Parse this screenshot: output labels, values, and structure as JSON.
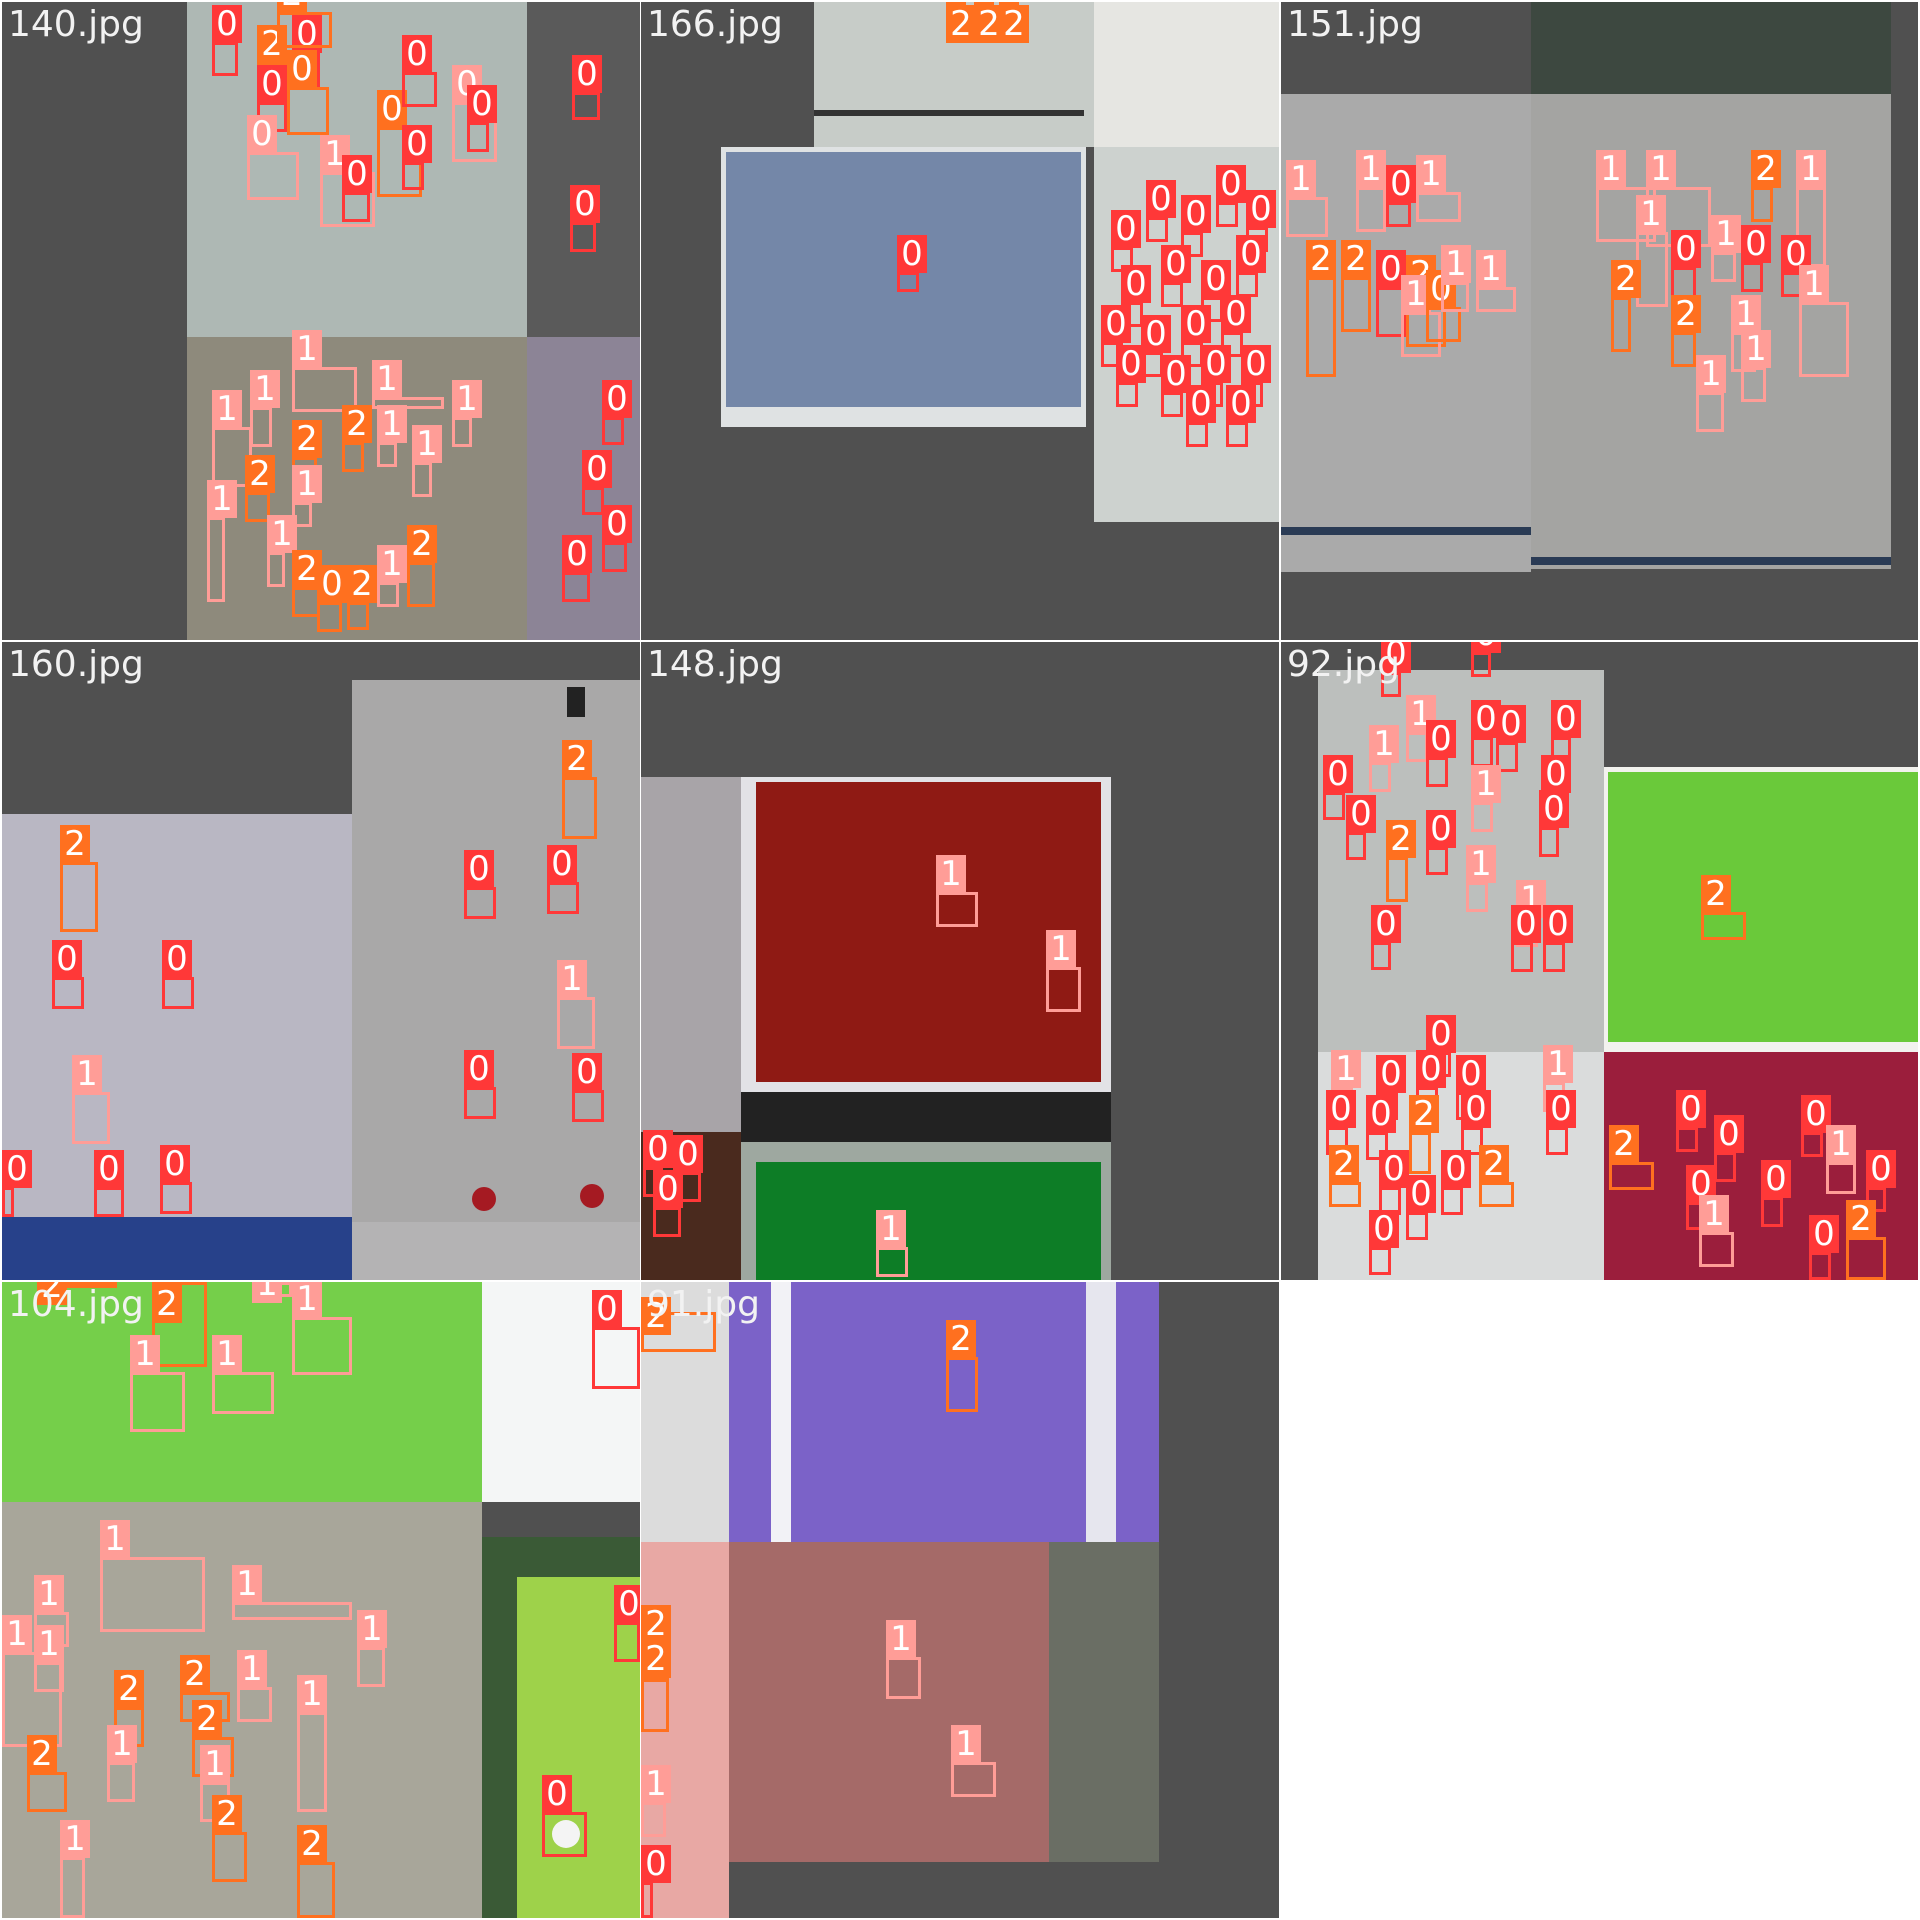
{
  "mosaic": {
    "tiles": [
      {
        "title": "140.jpg",
        "name": "tile-140"
      },
      {
        "title": "166.jpg",
        "name": "tile-166"
      },
      {
        "title": "151.jpg",
        "name": "tile-151"
      },
      {
        "title": "160.jpg",
        "name": "tile-160"
      },
      {
        "title": "148.jpg",
        "name": "tile-148"
      },
      {
        "title": "92.jpg",
        "name": "tile-92"
      },
      {
        "title": "104.jpg",
        "name": "tile-104"
      },
      {
        "title": "91.jpg",
        "name": "tile-91"
      }
    ],
    "class_labels": [
      "0",
      "1",
      "2"
    ],
    "class_colors": {
      "0": "#ff3838",
      "1": "#ff9d97",
      "2": "#ff701f"
    }
  }
}
